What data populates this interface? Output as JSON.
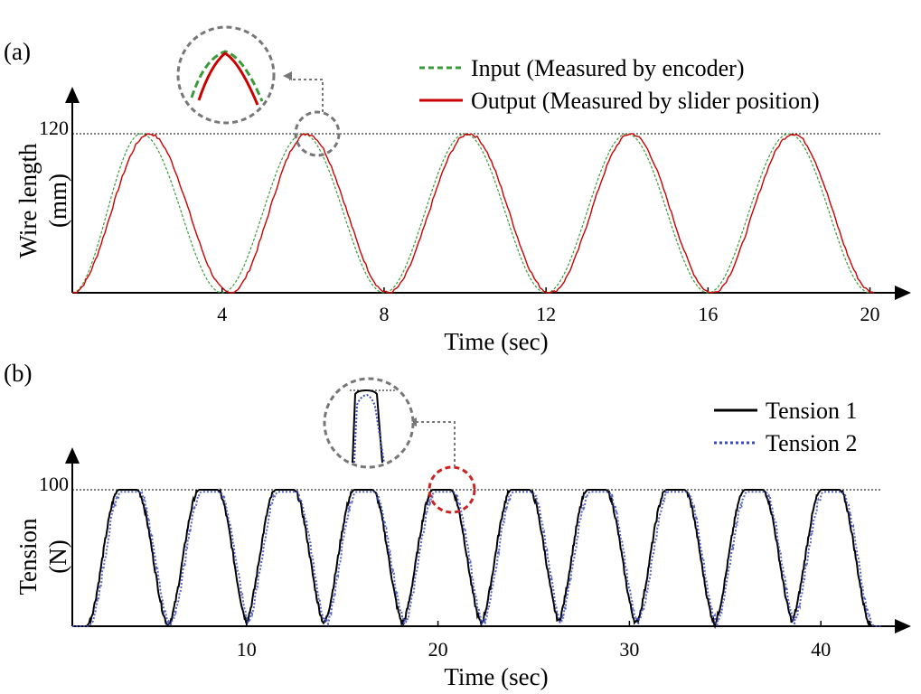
{
  "panel_a": {
    "label": "(a)",
    "xlabel": "Time (sec)",
    "ylabel_line1": "Wire length",
    "ylabel_line2": "(mm)"
  },
  "panel_b": {
    "label": "(b)",
    "xlabel": "Time (sec)",
    "ylabel_line1": "Tension",
    "ylabel_line2": "(N)"
  },
  "chart_data": [
    {
      "type": "line",
      "panel": "(a)",
      "xlabel": "Time (sec)",
      "ylabel": "Wire length (mm)",
      "xlim": [
        0.3,
        20.3
      ],
      "ylim": [
        0,
        120
      ],
      "xticks": [
        4,
        8,
        12,
        16,
        20
      ],
      "yticks": [
        120
      ],
      "reference_line": 120,
      "legend_position": "top-right",
      "series": [
        {
          "name": "Input (Measured by encoder)",
          "color": "#3a9a3a",
          "style": "dashed",
          "x": [
            0.3,
            2.0,
            4.0,
            6.0,
            8.0,
            10.0,
            12.0,
            14.0,
            16.0,
            18.0,
            20.0
          ],
          "y": [
            0,
            120,
            0,
            120,
            0,
            120,
            0,
            120,
            0,
            120,
            0
          ]
        },
        {
          "name": "Output (Measured by slider position)",
          "color": "#cc0000",
          "style": "solid",
          "x": [
            0.3,
            2.2,
            4.2,
            6.1,
            8.1,
            10.1,
            12.1,
            14.1,
            16.1,
            18.1,
            20.1
          ],
          "y": [
            0,
            120,
            0,
            120,
            0,
            120,
            0,
            120,
            0,
            120,
            0
          ]
        }
      ]
    },
    {
      "type": "line",
      "panel": "(b)",
      "xlabel": "Time (sec)",
      "ylabel": "Tension (N)",
      "xlim": [
        0.9,
        43.2
      ],
      "ylim": [
        0,
        100
      ],
      "xticks": [
        10,
        20,
        30,
        40
      ],
      "yticks": [
        100
      ],
      "reference_line": 100,
      "legend_position": "top-right",
      "pulse_peaks_x": [
        3.8,
        8.0,
        12.0,
        16.1,
        20.2,
        24.3,
        28.3,
        32.4,
        36.5,
        40.5
      ],
      "series": [
        {
          "name": "Tension 1",
          "color": "#000000",
          "style": "solid"
        },
        {
          "name": "Tension 2",
          "color": "#3a4ab8",
          "style": "dotted"
        }
      ]
    }
  ]
}
